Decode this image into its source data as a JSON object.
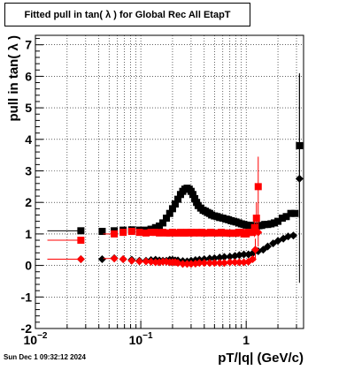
{
  "title": "Fitted pull in tan( λ ) for Global Rec All EtapT",
  "datestamp": "Sun Dec  1 09:32:12 2024",
  "chart_data": {
    "type": "scatter",
    "title": "Fitted pull in tan( λ ) for Global Rec All EtapT",
    "xlabel": "pT/|q| (GeV/c)",
    "ylabel": "pull in tan( λ )",
    "xscale": "log",
    "xlim": [
      0.01,
      3.5
    ],
    "ylim": [
      -2,
      7.3
    ],
    "grid": true,
    "xticks": [
      {
        "v": 0.01,
        "base": "10",
        "exp": "−2"
      },
      {
        "v": 0.1,
        "base": "10",
        "exp": "−1"
      },
      {
        "v": 1,
        "base": "1",
        "exp": ""
      }
    ],
    "yticks": [
      -2,
      -1,
      0,
      1,
      2,
      3,
      4,
      5,
      6,
      7
    ],
    "series": [
      {
        "color": "#000000",
        "marker": "square",
        "role": "width",
        "x": [
          0.027,
          0.043,
          0.056,
          0.068,
          0.082,
          0.097,
          0.112,
          0.125,
          0.138,
          0.15,
          0.162,
          0.175,
          0.188,
          0.2,
          0.212,
          0.225,
          0.238,
          0.25,
          0.262,
          0.275,
          0.288,
          0.3,
          0.312,
          0.325,
          0.338,
          0.35,
          0.37,
          0.39,
          0.41,
          0.43,
          0.45,
          0.47,
          0.5,
          0.53,
          0.56,
          0.6,
          0.64,
          0.68,
          0.72,
          0.76,
          0.8,
          0.85,
          0.9,
          0.95,
          1.0,
          1.06,
          1.12,
          1.18,
          1.25,
          1.32,
          1.4,
          1.5,
          1.6,
          1.72,
          1.85,
          2.0,
          2.2,
          2.4,
          2.65,
          2.9,
          3.2
        ],
        "y": [
          1.1,
          1.08,
          1.1,
          1.12,
          1.13,
          1.12,
          1.12,
          1.15,
          1.2,
          1.25,
          1.35,
          1.5,
          1.65,
          1.8,
          1.95,
          2.1,
          2.25,
          2.35,
          2.42,
          2.45,
          2.42,
          2.35,
          2.25,
          2.12,
          2.0,
          1.9,
          1.82,
          1.75,
          1.72,
          1.68,
          1.65,
          1.6,
          1.57,
          1.55,
          1.52,
          1.5,
          1.47,
          1.45,
          1.42,
          1.4,
          1.38,
          1.35,
          1.32,
          1.3,
          1.28,
          1.27,
          1.27,
          1.25,
          1.25,
          1.26,
          1.27,
          1.3,
          1.3,
          1.32,
          1.35,
          1.4,
          1.5,
          1.55,
          1.65,
          1.65,
          3.8
        ],
        "err_x_low": [
          0.014,
          0,
          0,
          0,
          0,
          0,
          0,
          0,
          0,
          0,
          0,
          0,
          0,
          0,
          0,
          0,
          0,
          0,
          0,
          0,
          0,
          0,
          0,
          0,
          0,
          0,
          0,
          0,
          0,
          0,
          0,
          0,
          0,
          0,
          0,
          0,
          0,
          0,
          0,
          0,
          0,
          0,
          0,
          0,
          0,
          0,
          0,
          0,
          0,
          0,
          0,
          0,
          0,
          0,
          0,
          0,
          0,
          0,
          0,
          0,
          0
        ],
        "err_y": [
          0,
          0,
          0,
          0,
          0,
          0,
          0,
          0,
          0,
          0,
          0,
          0,
          0,
          0,
          0,
          0,
          0,
          0,
          0,
          0,
          0,
          0,
          0,
          0,
          0,
          0,
          0,
          0,
          0,
          0,
          0,
          0,
          0,
          0,
          0,
          0,
          0,
          0,
          0,
          0,
          0,
          0,
          0,
          0,
          0,
          0,
          0,
          0,
          0,
          0,
          0,
          0,
          0,
          0,
          0,
          0,
          0,
          0,
          0,
          0,
          2.3
        ]
      },
      {
        "color": "#000000",
        "marker": "diamond",
        "role": "mean",
        "x": [
          0.027,
          0.043,
          0.056,
          0.068,
          0.082,
          0.097,
          0.112,
          0.125,
          0.138,
          0.15,
          0.162,
          0.175,
          0.188,
          0.2,
          0.212,
          0.225,
          0.25,
          0.275,
          0.3,
          0.33,
          0.36,
          0.4,
          0.45,
          0.5,
          0.56,
          0.62,
          0.7,
          0.78,
          0.86,
          0.95,
          1.05,
          1.15,
          1.3,
          1.45,
          1.6,
          1.8,
          2.0,
          2.25,
          2.5,
          2.8,
          3.2
        ],
        "y": [
          0.2,
          0.2,
          0.23,
          0.2,
          0.18,
          0.15,
          0.15,
          0.17,
          0.18,
          0.16,
          0.15,
          0.15,
          0.18,
          0.18,
          0.16,
          0.16,
          0.14,
          0.13,
          0.15,
          0.17,
          0.18,
          0.2,
          0.22,
          0.23,
          0.25,
          0.27,
          0.28,
          0.3,
          0.33,
          0.35,
          0.35,
          0.38,
          0.45,
          0.5,
          0.6,
          0.7,
          0.78,
          0.85,
          0.92,
          0.95,
          2.75
        ],
        "err_x_low": [
          0.014,
          0,
          0,
          0,
          0,
          0,
          0,
          0,
          0,
          0,
          0,
          0,
          0,
          0,
          0,
          0,
          0,
          0,
          0,
          0,
          0,
          0,
          0,
          0,
          0,
          0,
          0,
          0,
          0,
          0,
          0,
          0,
          0,
          0,
          0,
          0,
          0,
          0,
          0,
          0,
          0
        ],
        "err_y": [
          0,
          0,
          0,
          0,
          0,
          0,
          0,
          0,
          0,
          0,
          0,
          0,
          0,
          0,
          0,
          0,
          0,
          0,
          0,
          0,
          0,
          0,
          0,
          0,
          0,
          0,
          0,
          0,
          0,
          0,
          0,
          0,
          0,
          0,
          0,
          0,
          0,
          0,
          0,
          0,
          3.3
        ]
      },
      {
        "color": "#ff0000",
        "marker": "square",
        "role": "width",
        "x": [
          0.027,
          0.056,
          0.068,
          0.082,
          0.097,
          0.112,
          0.125,
          0.138,
          0.15,
          0.162,
          0.175,
          0.188,
          0.2,
          0.212,
          0.225,
          0.238,
          0.25,
          0.262,
          0.275,
          0.288,
          0.3,
          0.32,
          0.34,
          0.36,
          0.38,
          0.4,
          0.43,
          0.46,
          0.5,
          0.54,
          0.58,
          0.62,
          0.66,
          0.7,
          0.75,
          0.8,
          0.85,
          0.9,
          0.95,
          1.0,
          1.05,
          1.1,
          1.15,
          1.2,
          1.25,
          1.3
        ],
        "y": [
          0.8,
          1.0,
          1.05,
          1.08,
          1.05,
          1.03,
          1.05,
          1.05,
          1.03,
          1.05,
          1.03,
          1.03,
          1.05,
          1.03,
          1.03,
          1.05,
          1.03,
          1.03,
          1.05,
          1.03,
          1.05,
          1.03,
          1.05,
          1.03,
          1.05,
          1.03,
          1.03,
          1.05,
          1.03,
          1.03,
          1.05,
          1.03,
          1.03,
          1.02,
          1.03,
          1.02,
          1.05,
          1.05,
          1.0,
          1.0,
          1.05,
          1.05,
          1.05,
          1.2,
          1.5,
          2.5
        ],
        "err_x_low": [
          0.014,
          0.012,
          0,
          0,
          0,
          0,
          0,
          0,
          0,
          0,
          0,
          0,
          0,
          0,
          0,
          0,
          0,
          0,
          0,
          0,
          0,
          0,
          0,
          0,
          0,
          0,
          0,
          0,
          0,
          0,
          0,
          0,
          0,
          0,
          0,
          0,
          0,
          0,
          0,
          0,
          0,
          0,
          0,
          0,
          0,
          0
        ],
        "err_y": [
          0.1,
          0,
          0,
          0,
          0,
          0,
          0,
          0,
          0,
          0,
          0,
          0,
          0,
          0,
          0,
          0,
          0,
          0,
          0,
          0,
          0,
          0,
          0,
          0,
          0,
          0,
          0,
          0,
          0,
          0,
          0,
          0,
          0,
          0,
          0,
          0,
          0,
          0,
          0,
          0,
          0,
          0,
          0,
          0.3,
          0.5,
          0.95
        ]
      },
      {
        "color": "#ff0000",
        "marker": "diamond",
        "role": "mean",
        "x": [
          0.027,
          0.056,
          0.068,
          0.082,
          0.097,
          0.112,
          0.125,
          0.138,
          0.15,
          0.162,
          0.175,
          0.188,
          0.2,
          0.212,
          0.225,
          0.25,
          0.275,
          0.3,
          0.33,
          0.36,
          0.4,
          0.45,
          0.5,
          0.56,
          0.62,
          0.7,
          0.78,
          0.86,
          0.95,
          1.05,
          1.15,
          1.22,
          1.3
        ],
        "y": [
          0.2,
          0.22,
          0.2,
          0.15,
          0.13,
          0.13,
          0.12,
          0.1,
          0.1,
          0.12,
          0.12,
          0.1,
          0.1,
          0.1,
          0.08,
          0.05,
          0.05,
          0.05,
          0.06,
          0.08,
          0.08,
          0.08,
          0.08,
          0.08,
          0.08,
          0.1,
          0.1,
          0.1,
          0.1,
          0.12,
          0.2,
          0.5,
          1.05
        ],
        "err_x_low": [
          0.014,
          0.012,
          0,
          0,
          0,
          0,
          0,
          0,
          0,
          0,
          0,
          0,
          0,
          0,
          0,
          0,
          0,
          0,
          0,
          0,
          0,
          0,
          0,
          0,
          0,
          0,
          0,
          0,
          0,
          0,
          0,
          0,
          0
        ],
        "err_y": [
          0,
          0,
          0,
          0,
          0,
          0,
          0,
          0,
          0,
          0,
          0,
          0,
          0,
          0,
          0,
          0,
          0,
          0,
          0,
          0,
          0,
          0,
          0,
          0,
          0,
          0,
          0,
          0,
          0,
          0,
          0,
          0.35,
          0.45
        ]
      }
    ]
  }
}
